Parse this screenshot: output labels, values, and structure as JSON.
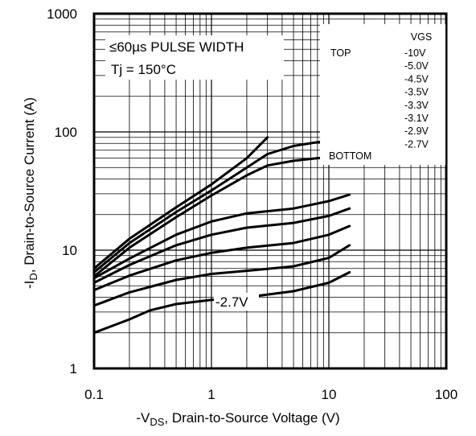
{
  "chart_data": {
    "type": "line",
    "x_scale": "log",
    "y_scale": "log",
    "xlim": [
      0.1,
      100
    ],
    "ylim": [
      1,
      1000
    ],
    "x_ticks": [
      "0.1",
      "1",
      "10",
      "100"
    ],
    "y_ticks": [
      "1",
      "10",
      "100",
      "1000"
    ],
    "xlabel": {
      "prefix": "-V",
      "sub": "DS",
      "suffix": ", Drain-to-Source Voltage (V)"
    },
    "ylabel": {
      "prefix": "-I",
      "sub": "D",
      "suffix": ", Drain-to-Source Current (A)"
    },
    "annotations": [
      "≤60µs PULSE WIDTH",
      "Tj = 150°C"
    ],
    "curve_label": "-2.7V",
    "grid": true,
    "legend": {
      "placement": "top-right",
      "header": "VGS",
      "top_label": "TOP",
      "bottom_label": "BOTTOM",
      "entries": [
        "-10V",
        "-5.0V",
        "-4.5V",
        "-3.5V",
        "-3.3V",
        "-3.1V",
        "-2.9V",
        "-2.7V"
      ]
    },
    "series": [
      {
        "vgs": "-10V",
        "x": [
          0.1,
          0.2,
          0.5,
          1,
          2,
          3
        ],
        "y": [
          7.0,
          12.5,
          23,
          36,
          60,
          90
        ]
      },
      {
        "vgs": "-5.0V",
        "x": [
          0.1,
          0.2,
          0.5,
          1,
          2,
          3,
          5,
          8,
          15
        ],
        "y": [
          6.5,
          11.5,
          21,
          32,
          50,
          65,
          76,
          82,
          85
        ]
      },
      {
        "vgs": "-4.5V",
        "x": [
          0.1,
          0.2,
          0.5,
          1,
          2,
          3,
          5,
          8,
          15
        ],
        "y": [
          6.0,
          10.5,
          19,
          29,
          43,
          52,
          57,
          60,
          62
        ]
      },
      {
        "vgs": "-3.5V",
        "x": [
          0.1,
          0.2,
          0.5,
          1,
          2,
          5,
          10,
          15
        ],
        "y": [
          5.8,
          8.5,
          13.5,
          17.5,
          20.5,
          22.5,
          26,
          29.5
        ]
      },
      {
        "vgs": "-3.3V",
        "x": [
          0.1,
          0.2,
          0.5,
          1,
          2,
          5,
          10,
          15
        ],
        "y": [
          5.3,
          7.5,
          11,
          13.5,
          15.5,
          17,
          19.5,
          22.5
        ]
      },
      {
        "vgs": "-3.1V",
        "x": [
          0.1,
          0.2,
          0.5,
          1,
          2,
          5,
          10,
          15
        ],
        "y": [
          4.6,
          6.1,
          8.2,
          9.5,
          10.5,
          11.5,
          13.5,
          16
        ]
      },
      {
        "vgs": "-2.9V",
        "x": [
          0.1,
          0.2,
          0.5,
          1,
          2,
          5,
          10,
          15
        ],
        "y": [
          3.4,
          4.4,
          5.6,
          6.3,
          6.7,
          7.3,
          8.6,
          11
        ]
      },
      {
        "vgs": "-2.7V",
        "x": [
          0.1,
          0.2,
          0.3,
          0.5,
          1,
          2,
          5,
          10,
          15
        ],
        "y": [
          2.0,
          2.6,
          3.1,
          3.5,
          3.8,
          4.0,
          4.5,
          5.3,
          6.5
        ]
      }
    ]
  }
}
